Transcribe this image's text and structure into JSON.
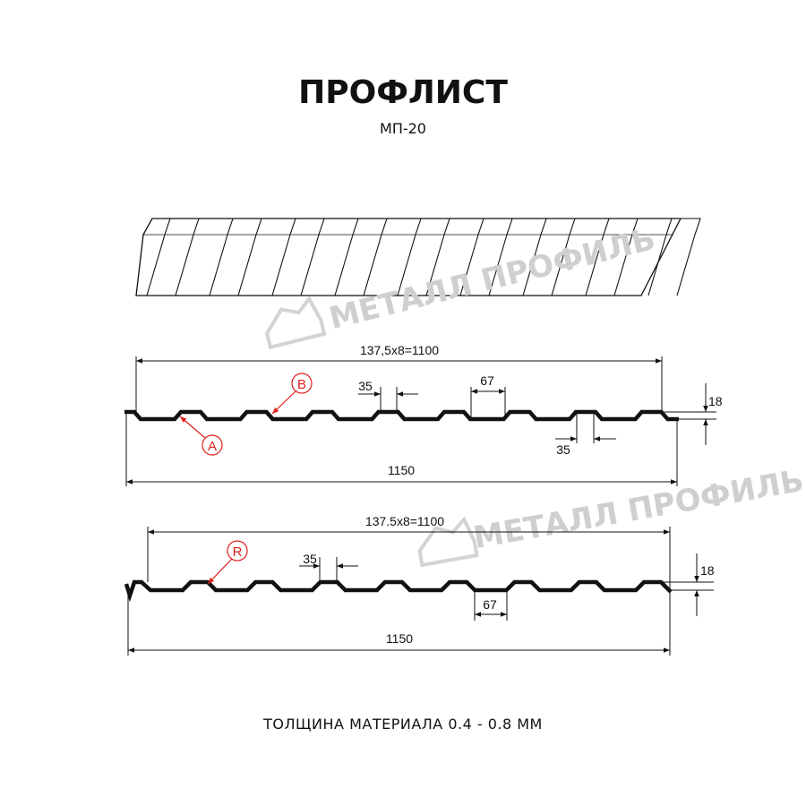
{
  "header": {
    "title": "ПРОФЛИСТ",
    "subtitle": "МП-20"
  },
  "watermark": "МЕТАЛЛ ПРОФИЛЬ",
  "profile_a": {
    "pitch_label": "137,5x8=1100",
    "width_label": "1150",
    "top_width_label": "35",
    "bottom_width_label": "67",
    "lower_width_label": "35",
    "height_label": "18",
    "marker_a": "A",
    "marker_b": "B"
  },
  "profile_r": {
    "pitch_label": "137.5x8=1100",
    "width_label": "1150",
    "top_width_label": "35",
    "bottom_width_label": "67",
    "height_label": "18",
    "marker_r": "R"
  },
  "footer": {
    "thickness": "ТОЛЩИНА МАТЕРИАЛА 0.4 - 0.8 ММ"
  },
  "colors": {
    "marker": "#e0201c",
    "line": "#111111",
    "watermark": "#cfcfcf"
  }
}
